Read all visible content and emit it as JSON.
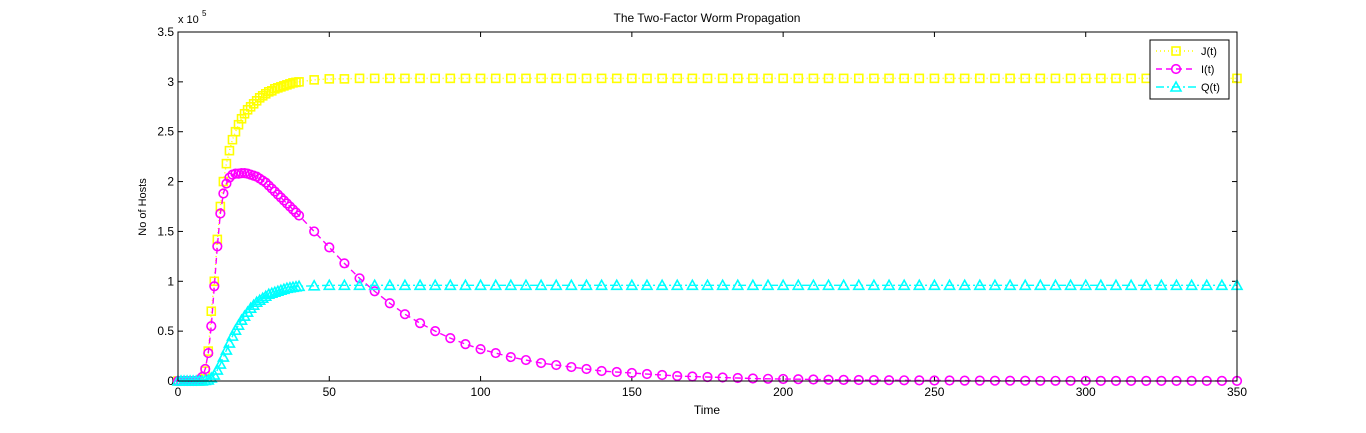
{
  "chart_data": {
    "type": "line",
    "title": "The Two-Factor Worm Propagation",
    "xlabel": "Time",
    "ylabel": "No of Hosts",
    "y_multiplier_label": "x 10",
    "y_multiplier_exponent": "5",
    "xlim": [
      0,
      350
    ],
    "ylim": [
      0,
      3.5
    ],
    "xticks": [
      0,
      50,
      100,
      150,
      200,
      250,
      300,
      350
    ],
    "xtick_labels": [
      "0",
      "50",
      "100",
      "150",
      "200",
      "250",
      "300",
      "350"
    ],
    "yticks": [
      0,
      0.5,
      1,
      1.5,
      2,
      2.5,
      3,
      3.5
    ],
    "ytick_labels": [
      "0",
      "0.5",
      "1",
      "1.5",
      "2",
      "2.5",
      "3",
      "3.5"
    ],
    "grid": false,
    "legend_position": "top-right",
    "x": [
      0,
      1,
      2,
      3,
      4,
      5,
      6,
      7,
      8,
      9,
      10,
      11,
      12,
      13,
      14,
      15,
      16,
      17,
      18,
      19,
      20,
      21,
      22,
      23,
      24,
      25,
      26,
      27,
      28,
      29,
      30,
      31,
      32,
      33,
      34,
      35,
      36,
      37,
      38,
      39,
      40,
      45,
      50,
      55,
      60,
      65,
      70,
      75,
      80,
      85,
      90,
      95,
      100,
      105,
      110,
      115,
      120,
      125,
      130,
      135,
      140,
      145,
      150,
      155,
      160,
      165,
      170,
      175,
      180,
      185,
      190,
      195,
      200,
      205,
      210,
      215,
      220,
      225,
      230,
      235,
      240,
      245,
      250,
      255,
      260,
      265,
      270,
      275,
      280,
      285,
      290,
      295,
      300,
      305,
      310,
      315,
      320,
      325,
      330,
      335,
      340,
      345,
      350
    ],
    "series": [
      {
        "name": "J(t)",
        "color": "#ffff00",
        "line_style": "dotted",
        "marker": "square",
        "values": [
          0,
          0,
          0,
          0,
          0,
          0,
          0,
          0,
          0.02,
          0.1,
          0.3,
          0.7,
          1.0,
          1.42,
          1.75,
          2.0,
          2.18,
          2.31,
          2.42,
          2.5,
          2.57,
          2.63,
          2.68,
          2.72,
          2.75,
          2.78,
          2.81,
          2.84,
          2.86,
          2.88,
          2.9,
          2.91,
          2.93,
          2.94,
          2.95,
          2.96,
          2.97,
          2.98,
          2.99,
          2.995,
          3.0,
          3.02,
          3.03,
          3.03,
          3.035,
          3.035,
          3.035,
          3.035,
          3.035,
          3.035,
          3.035,
          3.035,
          3.035,
          3.035,
          3.035,
          3.035,
          3.035,
          3.035,
          3.035,
          3.035,
          3.035,
          3.035,
          3.035,
          3.035,
          3.035,
          3.035,
          3.035,
          3.035,
          3.035,
          3.035,
          3.035,
          3.035,
          3.035,
          3.035,
          3.035,
          3.035,
          3.035,
          3.035,
          3.035,
          3.035,
          3.035,
          3.035,
          3.035,
          3.035,
          3.035,
          3.035,
          3.035,
          3.035,
          3.035,
          3.035,
          3.035,
          3.035,
          3.035,
          3.035,
          3.035,
          3.035,
          3.035,
          3.035,
          3.035,
          3.035,
          3.035,
          3.035,
          3.035
        ]
      },
      {
        "name": "I(t)",
        "color": "#ff00ff",
        "line_style": "dashed",
        "marker": "circle",
        "values": [
          0,
          0,
          0,
          0,
          0,
          0,
          0,
          0.01,
          0.04,
          0.12,
          0.28,
          0.55,
          0.95,
          1.35,
          1.68,
          1.88,
          1.98,
          2.04,
          2.07,
          2.08,
          2.08,
          2.085,
          2.085,
          2.08,
          2.07,
          2.06,
          2.05,
          2.03,
          2.01,
          1.99,
          1.96,
          1.93,
          1.9,
          1.87,
          1.84,
          1.81,
          1.78,
          1.75,
          1.72,
          1.69,
          1.66,
          1.5,
          1.34,
          1.18,
          1.03,
          0.9,
          0.78,
          0.67,
          0.58,
          0.5,
          0.43,
          0.37,
          0.32,
          0.28,
          0.24,
          0.21,
          0.18,
          0.16,
          0.14,
          0.12,
          0.1,
          0.09,
          0.08,
          0.07,
          0.06,
          0.05,
          0.045,
          0.04,
          0.035,
          0.03,
          0.025,
          0.022,
          0.02,
          0.018,
          0.015,
          0.013,
          0.011,
          0.01,
          0.009,
          0.008,
          0.007,
          0.006,
          0.005,
          0.005,
          0.004,
          0.004,
          0.003,
          0.003,
          0.003,
          0.002,
          0.002,
          0.002,
          0.002,
          0.001,
          0.001,
          0.001,
          0.001,
          0.001,
          0.001,
          0.001,
          0.001,
          0.001,
          0.001
        ]
      },
      {
        "name": "Q(t)",
        "color": "#00ffff",
        "line_style": "dash-dot",
        "marker": "triangle",
        "values": [
          0,
          0,
          0,
          0,
          0,
          0,
          0,
          0,
          0,
          0.005,
          0.01,
          0.03,
          0.06,
          0.11,
          0.17,
          0.24,
          0.31,
          0.38,
          0.45,
          0.51,
          0.56,
          0.61,
          0.65,
          0.69,
          0.73,
          0.76,
          0.79,
          0.81,
          0.83,
          0.85,
          0.87,
          0.88,
          0.89,
          0.9,
          0.91,
          0.92,
          0.93,
          0.935,
          0.94,
          0.945,
          0.95,
          0.955,
          0.96,
          0.96,
          0.96,
          0.96,
          0.96,
          0.96,
          0.96,
          0.96,
          0.96,
          0.96,
          0.96,
          0.96,
          0.96,
          0.96,
          0.96,
          0.96,
          0.96,
          0.96,
          0.96,
          0.96,
          0.96,
          0.96,
          0.96,
          0.96,
          0.96,
          0.96,
          0.96,
          0.96,
          0.96,
          0.96,
          0.96,
          0.96,
          0.96,
          0.96,
          0.96,
          0.96,
          0.96,
          0.96,
          0.96,
          0.96,
          0.96,
          0.96,
          0.96,
          0.96,
          0.96,
          0.96,
          0.96,
          0.96,
          0.96,
          0.96,
          0.96,
          0.96,
          0.96,
          0.96,
          0.96,
          0.96,
          0.96,
          0.96,
          0.96,
          0.96,
          0.96
        ]
      }
    ]
  }
}
